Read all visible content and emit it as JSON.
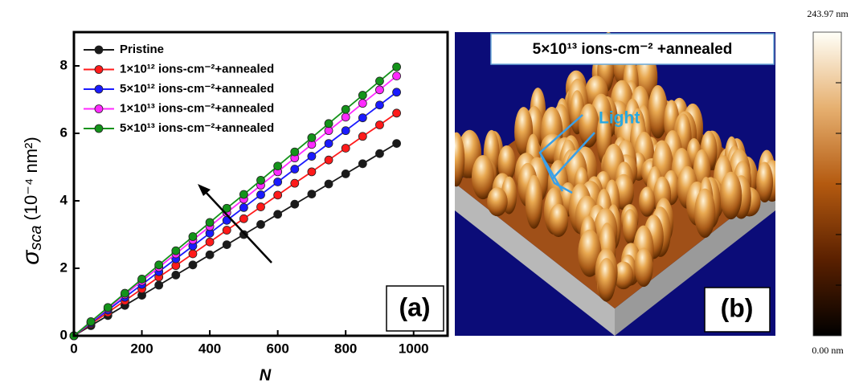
{
  "chart_data": {
    "type": "line",
    "panel_label": "(a)",
    "xlabel": "N",
    "ylabel": {
      "symbol": "σ",
      "subscript": "sca",
      "unit": "(10⁻⁴ nm²)"
    },
    "x": [
      0,
      50,
      100,
      150,
      200,
      250,
      300,
      350,
      400,
      450,
      500,
      550,
      600,
      650,
      700,
      750,
      800,
      850,
      900,
      950
    ],
    "series": [
      {
        "name": "Pristine",
        "color": "#1a1a1a",
        "values": [
          0,
          0.3,
          0.6,
          0.9,
          1.2,
          1.5,
          1.8,
          2.1,
          2.4,
          2.7,
          3.0,
          3.3,
          3.6,
          3.9,
          4.2,
          4.5,
          4.8,
          5.1,
          5.4,
          5.7
        ]
      },
      {
        "name": "1×10¹² ions-cm⁻²+annealed",
        "color": "#ff1a1a",
        "values": [
          0,
          0.35,
          0.69,
          1.04,
          1.39,
          1.74,
          2.08,
          2.43,
          2.78,
          3.13,
          3.47,
          3.82,
          4.17,
          4.52,
          4.86,
          5.21,
          5.56,
          5.91,
          6.25,
          6.6
        ]
      },
      {
        "name": "5×10¹² ions-cm⁻²+annealed",
        "color": "#1a1aff",
        "values": [
          0,
          0.38,
          0.76,
          1.14,
          1.52,
          1.9,
          2.28,
          2.66,
          3.04,
          3.42,
          3.8,
          4.18,
          4.56,
          4.94,
          5.32,
          5.7,
          6.08,
          6.46,
          6.84,
          7.22
        ]
      },
      {
        "name": "1×10¹³ ions-cm⁻²+annealed",
        "color": "#ff2aff",
        "values": [
          0,
          0.41,
          0.81,
          1.22,
          1.62,
          2.03,
          2.43,
          2.84,
          3.24,
          3.65,
          4.05,
          4.46,
          4.86,
          5.27,
          5.67,
          6.08,
          6.48,
          6.89,
          7.29,
          7.7
        ]
      },
      {
        "name": "5×10¹³ ions-cm⁻²+annealed",
        "color": "#14931a",
        "values": [
          0,
          0.42,
          0.84,
          1.26,
          1.68,
          2.1,
          2.52,
          2.94,
          3.36,
          3.78,
          4.19,
          4.61,
          5.03,
          5.45,
          5.87,
          6.29,
          6.71,
          7.13,
          7.55,
          7.97
        ]
      }
    ],
    "xlim": [
      0,
      1100
    ],
    "xticks": [
      0,
      200,
      400,
      600,
      800,
      1000
    ],
    "ylim": [
      0,
      9
    ],
    "yticks": [
      0,
      2,
      4,
      6,
      8
    ],
    "legend": "upper left"
  },
  "panel_b": {
    "title": "5×10¹³ ions-cm⁻² +annealed",
    "annotation": "Light",
    "label": "(b)"
  },
  "colorbar": {
    "max_label": "243.97 nm",
    "min_label": "0.00 nm"
  }
}
